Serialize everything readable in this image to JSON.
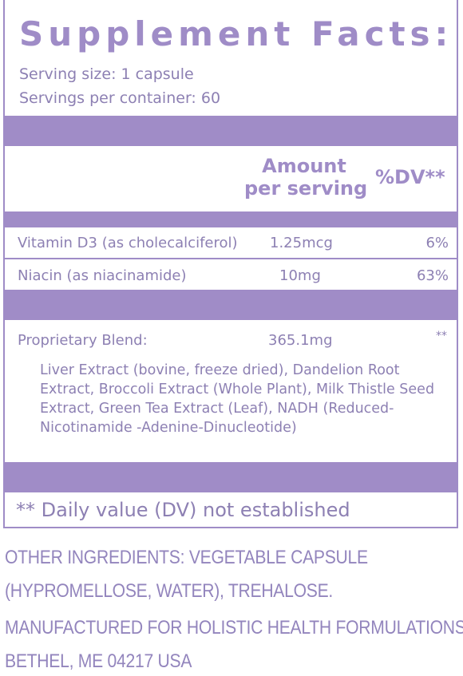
{
  "title": "Supplement Facts:",
  "serving": {
    "size": "Serving size: 1 capsule",
    "per_container": "Servings per container: 60"
  },
  "header": {
    "amount_line1": "Amount",
    "amount_line2": "per serving",
    "dv": "%DV**"
  },
  "rows": [
    {
      "name": "Vitamin D3 (as cholecalciferol)",
      "amount": "1.25mcg",
      "dv": "6%"
    },
    {
      "name": "Niacin (as niacinamide)",
      "amount": "10mg",
      "dv": "63%"
    }
  ],
  "blend": {
    "name": "Proprietary Blend:",
    "amount": "365.1mg",
    "dv": "**",
    "ingredients": "Liver Extract (bovine, freeze dried), Dandelion Root Extract, Broccoli Extract (Whole Plant), Milk Thistle Seed Extract, Green Tea Extract (Leaf), NADH (Reduced-Nicotinamide -Adenine-Dinucleotide)"
  },
  "footnote": "** Daily value (DV) not established",
  "other_ingredients": {
    "line1": "OTHER INGREDIENTS: VEGETABLE CAPSULE",
    "line2": "(HYPROMELLOSE, WATER), TREHALOSE."
  },
  "manufacturer": {
    "line1": "MANUFACTURED FOR HOLISTIC HEALTH FORMULATIONS,",
    "line2": "BETHEL, ME 04217 USA"
  },
  "colors": {
    "accent": "#a08cc7",
    "text": "#8d80b3"
  }
}
